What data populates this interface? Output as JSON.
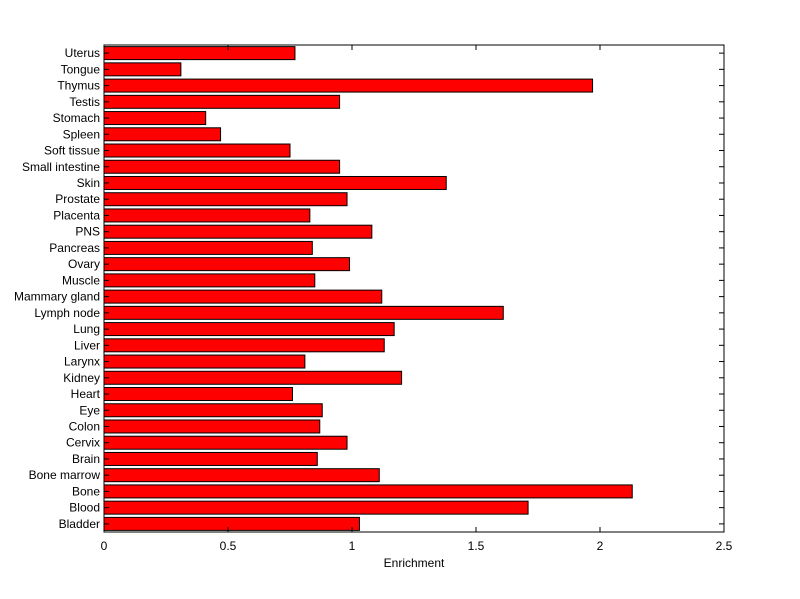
{
  "chart_data": {
    "type": "bar",
    "orientation": "horizontal",
    "categories": [
      "Bladder",
      "Blood",
      "Bone",
      "Bone marrow",
      "Brain",
      "Cervix",
      "Colon",
      "Eye",
      "Heart",
      "Kidney",
      "Larynx",
      "Liver",
      "Lung",
      "Lymph node",
      "Mammary gland",
      "Muscle",
      "Ovary",
      "Pancreas",
      "PNS",
      "Placenta",
      "Prostate",
      "Skin",
      "Small intestine",
      "Soft tissue",
      "Spleen",
      "Stomach",
      "Testis",
      "Thymus",
      "Tongue",
      "Uterus"
    ],
    "values": [
      1.03,
      1.71,
      2.13,
      1.11,
      0.86,
      0.98,
      0.87,
      0.88,
      0.76,
      1.2,
      0.81,
      1.13,
      1.17,
      1.61,
      1.12,
      0.85,
      0.99,
      0.84,
      1.08,
      0.83,
      0.98,
      1.38,
      0.95,
      0.75,
      0.47,
      0.41,
      0.95,
      1.97,
      0.31,
      0.77
    ],
    "title": "",
    "xlabel": "Enrichment",
    "ylabel": "",
    "xlim": [
      0,
      2.5
    ],
    "xticks": [
      0,
      0.5,
      1,
      1.5,
      2,
      2.5
    ],
    "xtick_labels": [
      "0",
      "0.5",
      "1",
      "1.5",
      "2",
      "2.5"
    ],
    "grid": false,
    "legend": "none",
    "colors": {
      "bar_fill": "#ff0000",
      "bar_edge": "#000000",
      "axes": "#000000"
    }
  }
}
